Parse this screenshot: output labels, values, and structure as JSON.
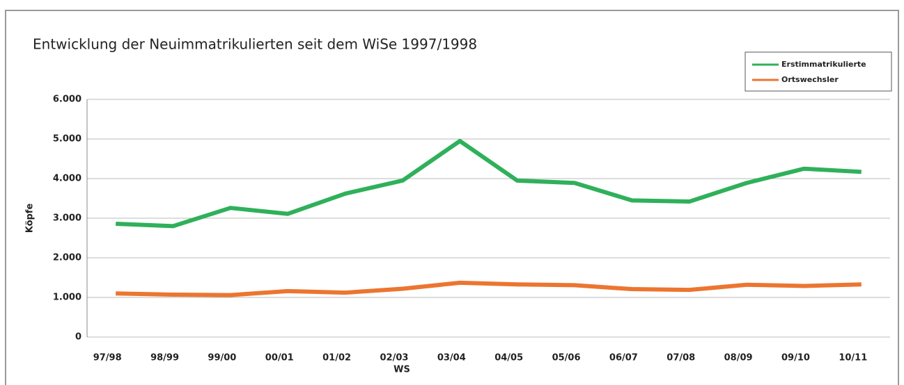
{
  "chart_data": {
    "type": "line",
    "title": "Entwicklung der Neuimmatrikulierten seit dem WiSe 1997/1998",
    "y_label": "Köpfe",
    "x_label": "WS",
    "categories": [
      "97/98",
      "98/99",
      "99/00",
      "00/01",
      "01/02",
      "02/03",
      "03/04",
      "04/05",
      "05/06",
      "06/07",
      "07/08",
      "08/09",
      "09/10",
      "10/11"
    ],
    "series": [
      {
        "name": "Erstimmatrikulierte",
        "color": "#2fb05a",
        "values": [
          2860,
          2800,
          3260,
          3110,
          3620,
          3950,
          4950,
          3950,
          3890,
          3450,
          3420,
          3890,
          4250,
          4170
        ]
      },
      {
        "name": "Ortswechsler",
        "color": "#ec7530",
        "values": [
          1100,
          1070,
          1060,
          1160,
          1120,
          1220,
          1370,
          1330,
          1310,
          1210,
          1190,
          1320,
          1290,
          1330
        ]
      }
    ],
    "ylim": [
      0,
      6000
    ],
    "yticks": [
      0,
      {
        "value": 1000,
        "label": "1.000"
      },
      {
        "value": 2000,
        "label": "2.000"
      },
      {
        "value": 3000,
        "label": "3.000"
      },
      {
        "value": 4000,
        "label": "4.000"
      },
      {
        "value": 5000,
        "label": "5.000"
      },
      {
        "value": 6000,
        "label": "6.000"
      }
    ],
    "grid": true,
    "legend": "top-right"
  }
}
